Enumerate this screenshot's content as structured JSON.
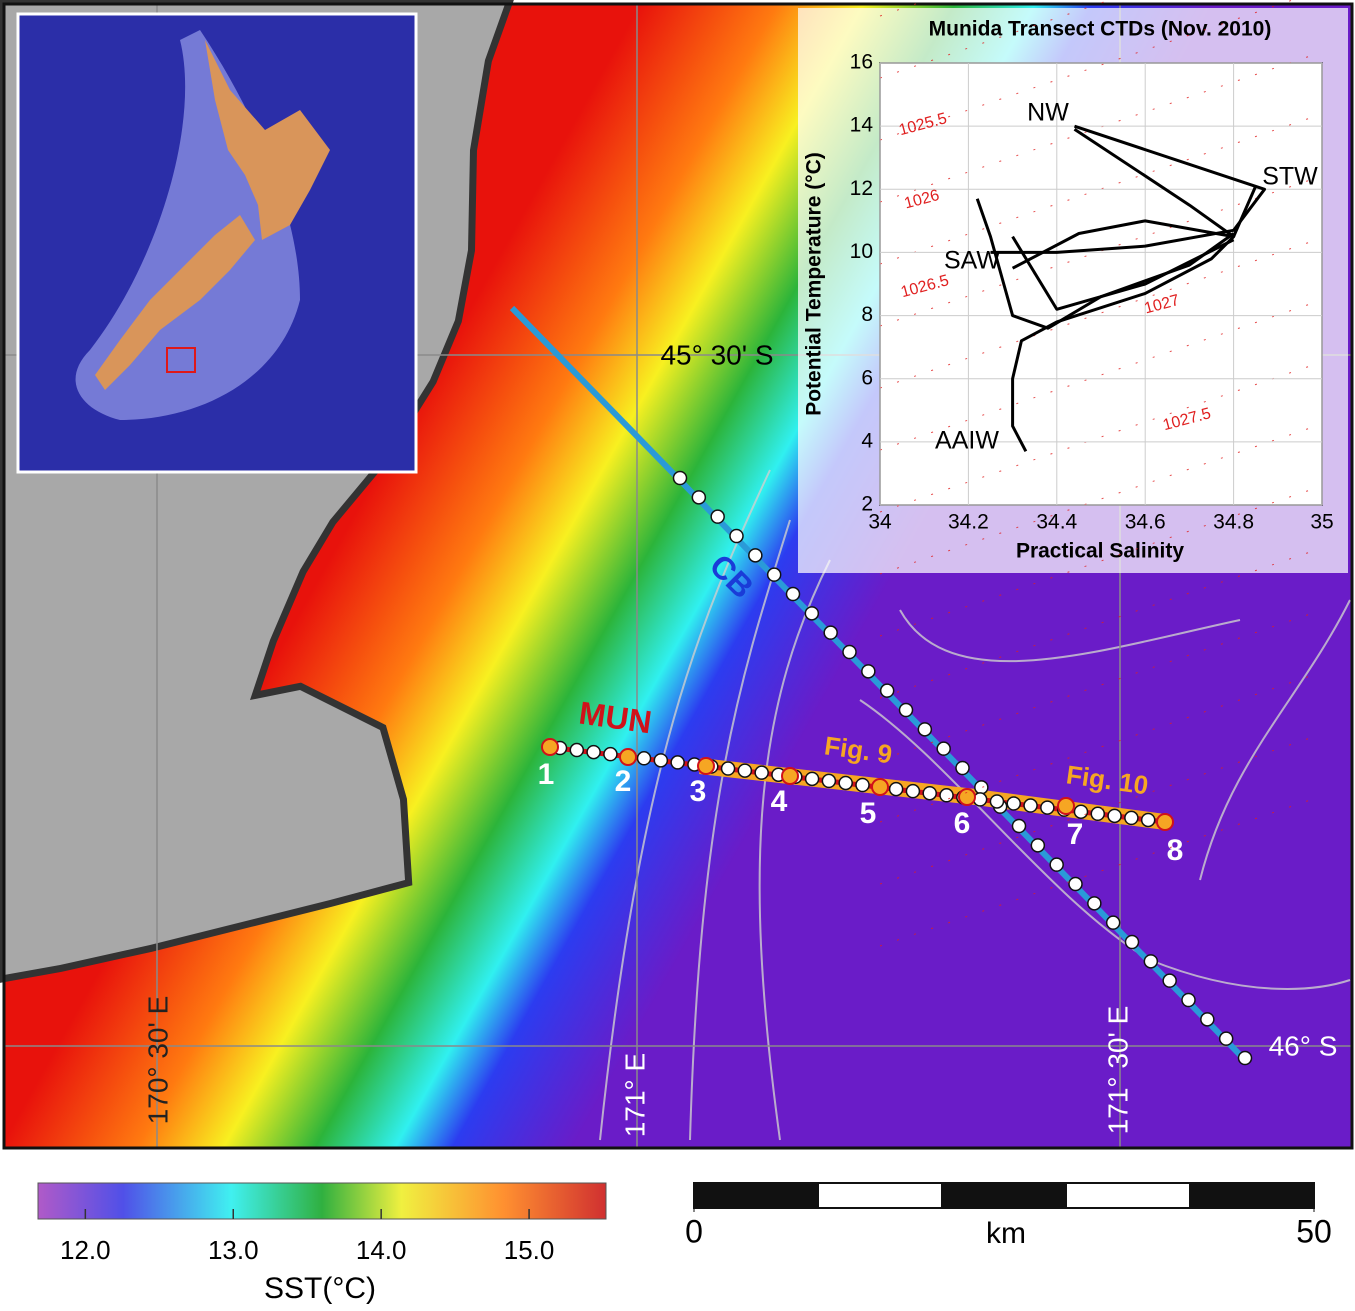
{
  "map": {
    "lat_labels": [
      "45° 30' S",
      "46° S"
    ],
    "lon_labels": [
      "170° 30' E",
      "171° E",
      "171° 30' E"
    ],
    "transects": [
      "CB",
      "MUN"
    ],
    "stations": [
      1,
      2,
      3,
      4,
      5,
      6,
      7,
      8
    ],
    "figure_labels": [
      "Fig. 9",
      "Fig. 10"
    ]
  },
  "colorbar": {
    "label": "SST(°C)",
    "lim": [
      11.68,
      15.52
    ],
    "ticks": [
      {
        "value": 12,
        "label": "12.0"
      },
      {
        "value": 13,
        "label": "13.0"
      },
      {
        "value": 14,
        "label": "14.0"
      },
      {
        "value": 15,
        "label": "15.0"
      }
    ]
  },
  "scale_bar": {
    "unit": "km",
    "lim": [
      0,
      50
    ],
    "ticks": [
      0,
      50
    ]
  },
  "chart_data": {
    "type": "line",
    "title": "Munida Transect CTDs (Nov. 2010)",
    "xlabel": "Practical Salinity",
    "ylabel": "Potential Temperature (°C)",
    "xlim": [
      34,
      35
    ],
    "ylim": [
      2,
      16
    ],
    "xticks": [
      34,
      34.2,
      34.4,
      34.6,
      34.8,
      35
    ],
    "yticks": [
      2,
      4,
      6,
      8,
      10,
      12,
      14,
      16
    ],
    "grid": true,
    "annotations": [
      "NW",
      "STW",
      "SAW",
      "AAIW"
    ],
    "isopycnal_labels": [
      1025.5,
      1026,
      1026.5,
      1027,
      1027.5
    ],
    "series": [
      {
        "color": "#000000",
        "x": [
          34.33,
          34.3,
          34.3,
          34.32,
          34.4,
          34.6,
          34.75,
          34.8,
          34.7,
          34.44
        ],
        "values": [
          3.7,
          4.5,
          6,
          7.2,
          7.8,
          8.7,
          9.8,
          10.5,
          11.5,
          13.9
        ]
      },
      {
        "color": "#000000",
        "x": [
          34.44,
          34.87,
          34.8,
          34.6,
          34.4,
          34.25
        ],
        "values": [
          14.0,
          12.0,
          10.7,
          10.2,
          10.0,
          10.0
        ]
      },
      {
        "color": "#000000",
        "x": [
          34.22,
          34.25,
          34.28,
          34.3,
          34.38,
          34.5,
          34.7,
          34.8
        ],
        "values": [
          11.7,
          10.5,
          9,
          8,
          7.6,
          8.6,
          9.6,
          10.6
        ]
      },
      {
        "color": "#000000",
        "x": [
          34.3,
          34.45,
          34.6,
          34.8,
          34.85
        ],
        "values": [
          9.5,
          10.6,
          11.0,
          10.5,
          12.1
        ]
      },
      {
        "color": "#000000",
        "x": [
          34.3,
          34.4,
          34.6,
          34.8
        ],
        "values": [
          10.5,
          8.2,
          9.0,
          10.4
        ]
      }
    ]
  }
}
